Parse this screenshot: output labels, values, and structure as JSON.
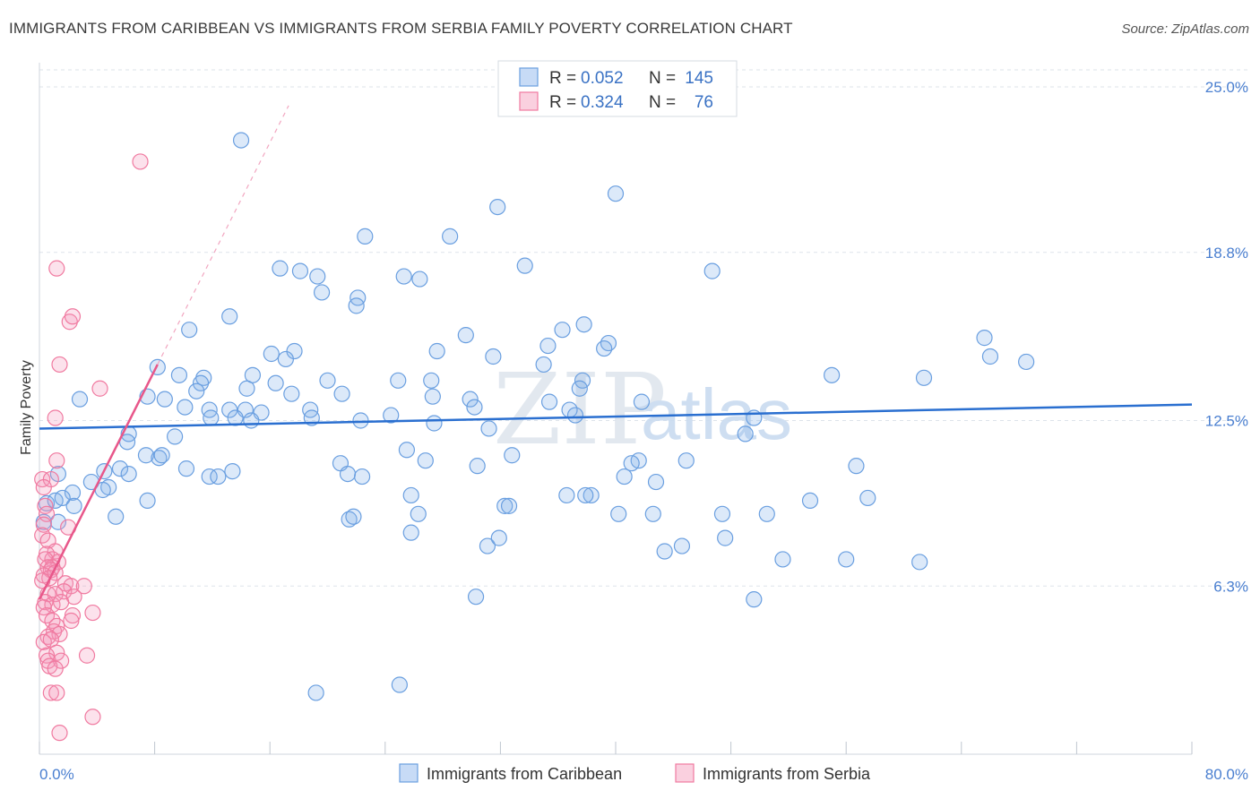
{
  "title": "IMMIGRANTS FROM CARIBBEAN VS IMMIGRANTS FROM SERBIA FAMILY POVERTY CORRELATION CHART",
  "source": "Source: ZipAtlas.com",
  "watermark": {
    "zip": "ZIP",
    "atlas": "atlas"
  },
  "colors": {
    "blue": "#6a9fe0",
    "blue_fill": "rgba(130,175,235,0.28)",
    "blue_line": "#2a6fd0",
    "pink": "#f07aa0",
    "pink_fill": "rgba(245,150,185,0.28)",
    "pink_line": "#e8578a",
    "grid": "#dde3ea",
    "tick_label": "#4a7fd0"
  },
  "legend": {
    "rows": [
      {
        "r_label": "R =",
        "r_value": "0.052",
        "n_label": "N =",
        "n_value": "145"
      },
      {
        "r_label": "R =",
        "r_value": "0.324",
        "n_label": "N =",
        "n_value": "76"
      }
    ]
  },
  "chart_data": {
    "type": "scatter",
    "ylabel": "Family Poverty",
    "xlim": [
      0,
      80
    ],
    "ylim": [
      0,
      25.8
    ],
    "x_tick_labels": [
      "0.0%",
      "80.0%"
    ],
    "y_ticks": [
      6.3,
      12.5,
      18.8,
      25.0
    ],
    "y_tick_labels": [
      "6.3%",
      "12.5%",
      "18.8%",
      "25.0%"
    ],
    "grid": true,
    "legend_position": "top-center",
    "series": [
      {
        "name": "Immigrants from Caribbean",
        "color": "blue",
        "trend": {
          "x": [
            0,
            80
          ],
          "y": [
            12.2,
            13.1
          ]
        },
        "points": [
          [
            14.0,
            23.0
          ],
          [
            40.0,
            21.0
          ],
          [
            31.8,
            20.5
          ],
          [
            22.6,
            19.4
          ],
          [
            28.5,
            19.4
          ],
          [
            33.7,
            18.3
          ],
          [
            16.7,
            18.2
          ],
          [
            18.1,
            18.1
          ],
          [
            19.3,
            17.9
          ],
          [
            25.3,
            17.9
          ],
          [
            26.4,
            17.8
          ],
          [
            46.7,
            18.1
          ],
          [
            19.6,
            17.3
          ],
          [
            22.1,
            17.1
          ],
          [
            22.0,
            16.8
          ],
          [
            13.2,
            16.4
          ],
          [
            37.8,
            16.1
          ],
          [
            36.3,
            15.9
          ],
          [
            10.4,
            15.9
          ],
          [
            29.6,
            15.7
          ],
          [
            65.6,
            15.6
          ],
          [
            35.3,
            15.3
          ],
          [
            39.5,
            15.4
          ],
          [
            27.6,
            15.1
          ],
          [
            39.2,
            15.2
          ],
          [
            17.7,
            15.1
          ],
          [
            16.1,
            15.0
          ],
          [
            17.1,
            14.8
          ],
          [
            31.5,
            14.9
          ],
          [
            35.0,
            14.6
          ],
          [
            66.0,
            14.9
          ],
          [
            68.5,
            14.7
          ],
          [
            8.2,
            14.5
          ],
          [
            9.7,
            14.2
          ],
          [
            14.8,
            14.2
          ],
          [
            55.0,
            14.2
          ],
          [
            61.4,
            14.1
          ],
          [
            11.4,
            14.1
          ],
          [
            20.0,
            14.0
          ],
          [
            16.4,
            13.9
          ],
          [
            24.9,
            14.0
          ],
          [
            27.2,
            14.0
          ],
          [
            37.7,
            14.0
          ],
          [
            11.2,
            13.9
          ],
          [
            14.4,
            13.7
          ],
          [
            17.5,
            13.5
          ],
          [
            10.9,
            13.6
          ],
          [
            21.0,
            13.5
          ],
          [
            37.5,
            13.7
          ],
          [
            27.3,
            13.4
          ],
          [
            7.5,
            13.4
          ],
          [
            2.8,
            13.3
          ],
          [
            8.7,
            13.3
          ],
          [
            29.9,
            13.3
          ],
          [
            35.4,
            13.2
          ],
          [
            41.8,
            13.2
          ],
          [
            10.1,
            13.0
          ],
          [
            11.8,
            12.9
          ],
          [
            13.2,
            12.9
          ],
          [
            14.3,
            12.9
          ],
          [
            15.4,
            12.8
          ],
          [
            18.8,
            12.9
          ],
          [
            30.2,
            13.0
          ],
          [
            11.9,
            12.6
          ],
          [
            13.6,
            12.6
          ],
          [
            14.7,
            12.5
          ],
          [
            24.4,
            12.7
          ],
          [
            18.9,
            12.6
          ],
          [
            22.3,
            12.5
          ],
          [
            27.4,
            12.4
          ],
          [
            36.8,
            12.9
          ],
          [
            37.2,
            12.7
          ],
          [
            49.6,
            12.6
          ],
          [
            49.0,
            12.0
          ],
          [
            31.2,
            12.2
          ],
          [
            6.2,
            12.0
          ],
          [
            9.4,
            11.9
          ],
          [
            6.1,
            11.7
          ],
          [
            25.5,
            11.4
          ],
          [
            7.4,
            11.2
          ],
          [
            8.3,
            11.1
          ],
          [
            8.5,
            11.2
          ],
          [
            32.8,
            11.2
          ],
          [
            26.8,
            11.0
          ],
          [
            41.6,
            11.0
          ],
          [
            44.9,
            11.0
          ],
          [
            56.7,
            10.8
          ],
          [
            13.4,
            10.6
          ],
          [
            41.1,
            10.9
          ],
          [
            20.9,
            10.9
          ],
          [
            4.5,
            10.6
          ],
          [
            5.6,
            10.7
          ],
          [
            6.2,
            10.5
          ],
          [
            11.8,
            10.4
          ],
          [
            12.4,
            10.4
          ],
          [
            21.4,
            10.5
          ],
          [
            22.4,
            10.4
          ],
          [
            40.6,
            10.4
          ],
          [
            42.8,
            10.2
          ],
          [
            30.4,
            10.8
          ],
          [
            10.2,
            10.7
          ],
          [
            1.3,
            10.5
          ],
          [
            2.3,
            9.8
          ],
          [
            3.6,
            10.2
          ],
          [
            4.8,
            10.0
          ],
          [
            38.3,
            9.7
          ],
          [
            36.6,
            9.7
          ],
          [
            37.9,
            9.7
          ],
          [
            4.4,
            9.9
          ],
          [
            32.3,
            9.3
          ],
          [
            25.8,
            9.7
          ],
          [
            57.5,
            9.6
          ],
          [
            53.5,
            9.5
          ],
          [
            0.5,
            9.4
          ],
          [
            1.1,
            9.5
          ],
          [
            1.6,
            9.6
          ],
          [
            2.4,
            9.3
          ],
          [
            7.5,
            9.5
          ],
          [
            32.6,
            9.3
          ],
          [
            40.2,
            9.0
          ],
          [
            47.4,
            9.0
          ],
          [
            50.5,
            9.0
          ],
          [
            42.6,
            9.0
          ],
          [
            26.3,
            9.0
          ],
          [
            0.3,
            8.7
          ],
          [
            1.3,
            8.7
          ],
          [
            5.3,
            8.9
          ],
          [
            21.5,
            8.8
          ],
          [
            21.8,
            8.9
          ],
          [
            44.6,
            7.8
          ],
          [
            43.4,
            7.6
          ],
          [
            51.6,
            7.3
          ],
          [
            56.0,
            7.3
          ],
          [
            61.1,
            7.2
          ],
          [
            31.1,
            7.8
          ],
          [
            25.8,
            8.3
          ],
          [
            47.6,
            8.1
          ],
          [
            31.9,
            8.1
          ],
          [
            30.3,
            5.9
          ],
          [
            49.6,
            5.8
          ],
          [
            19.2,
            2.3
          ],
          [
            25.0,
            2.6
          ]
        ]
      },
      {
        "name": "Immigrants from Serbia",
        "color": "pink",
        "trend": {
          "x": [
            0,
            8.2
          ],
          "y": [
            5.8,
            14.6
          ]
        },
        "trend_dashed": {
          "x": [
            8.2,
            17.3
          ],
          "y": [
            14.6,
            24.3
          ]
        },
        "points": [
          [
            7.0,
            22.2
          ],
          [
            1.2,
            18.2
          ],
          [
            2.1,
            16.2
          ],
          [
            2.3,
            16.4
          ],
          [
            1.4,
            14.6
          ],
          [
            4.2,
            13.7
          ],
          [
            1.1,
            12.6
          ],
          [
            1.2,
            11.0
          ],
          [
            0.2,
            10.3
          ],
          [
            0.8,
            10.3
          ],
          [
            0.3,
            10.0
          ],
          [
            0.4,
            9.3
          ],
          [
            0.5,
            9.0
          ],
          [
            0.3,
            8.6
          ],
          [
            2.0,
            8.5
          ],
          [
            0.2,
            8.2
          ],
          [
            0.6,
            8.0
          ],
          [
            1.1,
            7.6
          ],
          [
            0.5,
            7.5
          ],
          [
            0.9,
            7.3
          ],
          [
            1.3,
            7.2
          ],
          [
            0.4,
            7.3
          ],
          [
            0.9,
            7.0
          ],
          [
            0.6,
            7.0
          ],
          [
            0.8,
            6.9
          ],
          [
            0.3,
            6.7
          ],
          [
            1.1,
            6.8
          ],
          [
            0.7,
            6.6
          ],
          [
            0.2,
            6.5
          ],
          [
            1.8,
            6.4
          ],
          [
            2.2,
            6.3
          ],
          [
            3.1,
            6.3
          ],
          [
            1.7,
            6.1
          ],
          [
            2.4,
            5.9
          ],
          [
            0.6,
            6.0
          ],
          [
            1.1,
            6.0
          ],
          [
            0.4,
            5.7
          ],
          [
            0.9,
            5.6
          ],
          [
            1.5,
            5.7
          ],
          [
            0.3,
            5.5
          ],
          [
            3.7,
            5.3
          ],
          [
            0.5,
            5.2
          ],
          [
            2.3,
            5.2
          ],
          [
            0.9,
            5.0
          ],
          [
            2.2,
            5.0
          ],
          [
            1.2,
            4.8
          ],
          [
            1.0,
            4.6
          ],
          [
            1.4,
            4.5
          ],
          [
            0.6,
            4.4
          ],
          [
            0.3,
            4.2
          ],
          [
            0.8,
            4.3
          ],
          [
            1.2,
            3.8
          ],
          [
            0.5,
            3.7
          ],
          [
            3.3,
            3.7
          ],
          [
            0.6,
            3.5
          ],
          [
            1.5,
            3.5
          ],
          [
            0.7,
            3.3
          ],
          [
            1.1,
            3.2
          ],
          [
            0.8,
            2.3
          ],
          [
            1.2,
            2.3
          ],
          [
            3.7,
            1.4
          ],
          [
            1.4,
            0.8
          ]
        ]
      }
    ]
  },
  "bottom_legend": [
    "Immigrants from Caribbean",
    "Immigrants from Serbia"
  ]
}
